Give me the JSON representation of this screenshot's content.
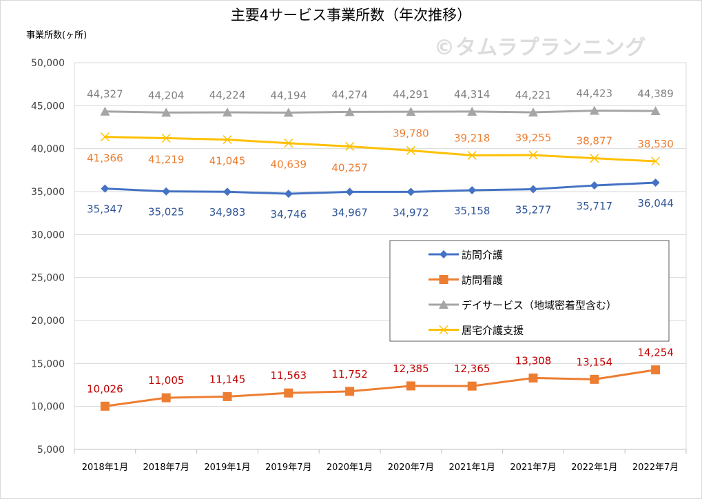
{
  "title": "主要4サービス事業所数（年次推移）",
  "unit_label": "事業所数(ヶ所)",
  "watermark": "©タムラプランニング",
  "chart_data": {
    "type": "line",
    "title": "主要4サービス事業所数（年次推移）",
    "ylabel": "事業所数(ヶ所)",
    "xlabel": "",
    "ylim": [
      5000,
      50000
    ],
    "y_ticks": [
      5000,
      10000,
      15000,
      20000,
      25000,
      30000,
      35000,
      40000,
      45000,
      50000
    ],
    "y_tick_labels": [
      "5,000",
      "10,000",
      "15,000",
      "20,000",
      "25,000",
      "30,000",
      "35,000",
      "40,000",
      "45,000",
      "50,000"
    ],
    "grid": true,
    "legend_position": "middle-right",
    "categories": [
      "2018年1月",
      "2018年7月",
      "2019年1月",
      "2019年7月",
      "2020年1月",
      "2020年7月",
      "2021年1月",
      "2021年7月",
      "2022年1月",
      "2022年7月"
    ],
    "series": [
      {
        "name": "訪問介護",
        "color": "#4472c4",
        "label_color": "#2f5597",
        "marker": "diamond",
        "label_position": "below",
        "values": [
          35347,
          35025,
          34983,
          34746,
          34967,
          34972,
          35158,
          35277,
          35717,
          36044
        ],
        "labels": [
          "35,347",
          "35,025",
          "34,983",
          "34,746",
          "34,967",
          "34,972",
          "35,158",
          "35,277",
          "35,717",
          "36,044"
        ]
      },
      {
        "name": "訪問看護",
        "color": "#ed7d31",
        "label_color": "#c00000",
        "marker": "square",
        "label_position": "above",
        "values": [
          10026,
          11005,
          11145,
          11563,
          11752,
          12385,
          12365,
          13308,
          13154,
          14254
        ],
        "labels": [
          "10,026",
          "11,005",
          "11,145",
          "11,563",
          "11,752",
          "12,385",
          "12,365",
          "13,308",
          "13,154",
          "14,254"
        ]
      },
      {
        "name": "デイサービス（地域密着型含む）",
        "color": "#a5a5a5",
        "label_color": "#7f7f7f",
        "marker": "triangle",
        "label_position": "above",
        "values": [
          44327,
          44204,
          44224,
          44194,
          44274,
          44291,
          44314,
          44221,
          44423,
          44389
        ],
        "labels": [
          "44,327",
          "44,204",
          "44,224",
          "44,194",
          "44,274",
          "44,291",
          "44,314",
          "44,221",
          "44,423",
          "44,389"
        ]
      },
      {
        "name": "居宅介護支援",
        "color": "#ffc000",
        "label_color": "#ed7d31",
        "marker": "x",
        "label_position": "mixed",
        "values": [
          41366,
          41219,
          41045,
          40639,
          40257,
          39780,
          39218,
          39255,
          38877,
          38530
        ],
        "labels": [
          "41,366",
          "41,219",
          "41,045",
          "40,639",
          "40,257",
          "39,780",
          "39,218",
          "39,255",
          "38,877",
          "38,530"
        ]
      }
    ]
  }
}
